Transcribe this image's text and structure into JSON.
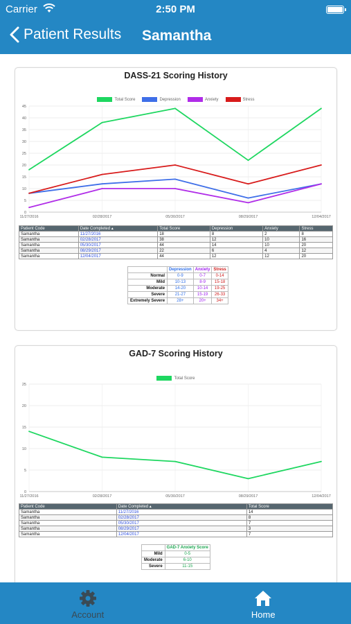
{
  "status_bar": {
    "carrier": "Carrier",
    "time": "2:50 PM"
  },
  "nav": {
    "back_label": "Patient Results",
    "title": "Samantha"
  },
  "dass": {
    "title": "DASS-21 Scoring History",
    "chart_data": {
      "type": "line",
      "x": [
        "11/27/2016",
        "02/28/2017",
        "05/30/2017",
        "08/29/2017",
        "12/04/2017"
      ],
      "ylim": [
        0,
        45
      ],
      "yticks": [
        "0",
        "5",
        "10",
        "15",
        "20",
        "25",
        "30",
        "35",
        "40",
        "45"
      ],
      "grid": true,
      "legend": "top",
      "series": [
        {
          "name": "Total Score",
          "color": "#1ed760",
          "values": [
            18,
            38,
            44,
            22,
            44
          ]
        },
        {
          "name": "Depression",
          "color": "#3f6fe8",
          "values": [
            8,
            12,
            14,
            6,
            12
          ]
        },
        {
          "name": "Anxiety",
          "color": "#b02ce8",
          "values": [
            2,
            10,
            10,
            4,
            12
          ]
        },
        {
          "name": "Stress",
          "color": "#d81b1b",
          "values": [
            8,
            16,
            20,
            12,
            20
          ]
        }
      ]
    },
    "table": {
      "headers": [
        "Patient Code",
        "Date Completed",
        "Total Score",
        "Depression",
        "Anxiety",
        "Stress"
      ],
      "rows": [
        [
          "Samantha",
          "11/27/2016",
          "18",
          "8",
          "2",
          "8"
        ],
        [
          "Samantha",
          "02/28/2017",
          "38",
          "12",
          "10",
          "16"
        ],
        [
          "Samantha",
          "05/30/2017",
          "44",
          "14",
          "10",
          "20"
        ],
        [
          "Samantha",
          "08/29/2017",
          "22",
          "6",
          "4",
          "12"
        ],
        [
          "Samantha",
          "12/04/2017",
          "44",
          "12",
          "12",
          "20"
        ]
      ]
    },
    "scale": {
      "headers": [
        "Depression",
        "Anxiety",
        "Stress"
      ],
      "rows": [
        [
          "Normal",
          "0-9",
          "0-7",
          "0-14"
        ],
        [
          "Mild",
          "10-13",
          "8-9",
          "15-18"
        ],
        [
          "Moderate",
          "14-20",
          "10-14",
          "19-25"
        ],
        [
          "Severe",
          "21-27",
          "15-19",
          "26-33"
        ],
        [
          "Extremely Severe",
          "28+",
          "20+",
          "34+"
        ]
      ]
    }
  },
  "gad": {
    "title": "GAD-7 Scoring History",
    "chart_data": {
      "type": "line",
      "x": [
        "11/27/2016",
        "02/28/2017",
        "05/30/2017",
        "08/29/2017",
        "12/04/2017"
      ],
      "ylim": [
        0,
        25
      ],
      "yticks": [
        "0",
        "5",
        "10",
        "15",
        "20",
        "25"
      ],
      "grid": true,
      "legend": "top",
      "series": [
        {
          "name": "Total Score",
          "color": "#1ed760",
          "values": [
            14,
            8,
            7,
            3,
            7
          ]
        }
      ]
    },
    "table": {
      "headers": [
        "Patient Code",
        "Date Completed",
        "Total Score"
      ],
      "rows": [
        [
          "Samantha",
          "11/27/2016",
          "14"
        ],
        [
          "Samantha",
          "02/28/2017",
          "8"
        ],
        [
          "Samantha",
          "05/30/2017",
          "7"
        ],
        [
          "Samantha",
          "08/29/2017",
          "3"
        ],
        [
          "Samantha",
          "12/04/2017",
          "7"
        ]
      ]
    },
    "scale": {
      "header": "GAD-7 Anxiety Score",
      "rows": [
        [
          "Mild",
          "0-5"
        ],
        [
          "Moderate",
          "6-10"
        ],
        [
          "Severe",
          "11-15"
        ]
      ]
    }
  },
  "tabs": [
    {
      "label": "Account",
      "icon": "gear-icon",
      "active": false
    },
    {
      "label": "Home",
      "icon": "home-icon",
      "active": true
    }
  ]
}
